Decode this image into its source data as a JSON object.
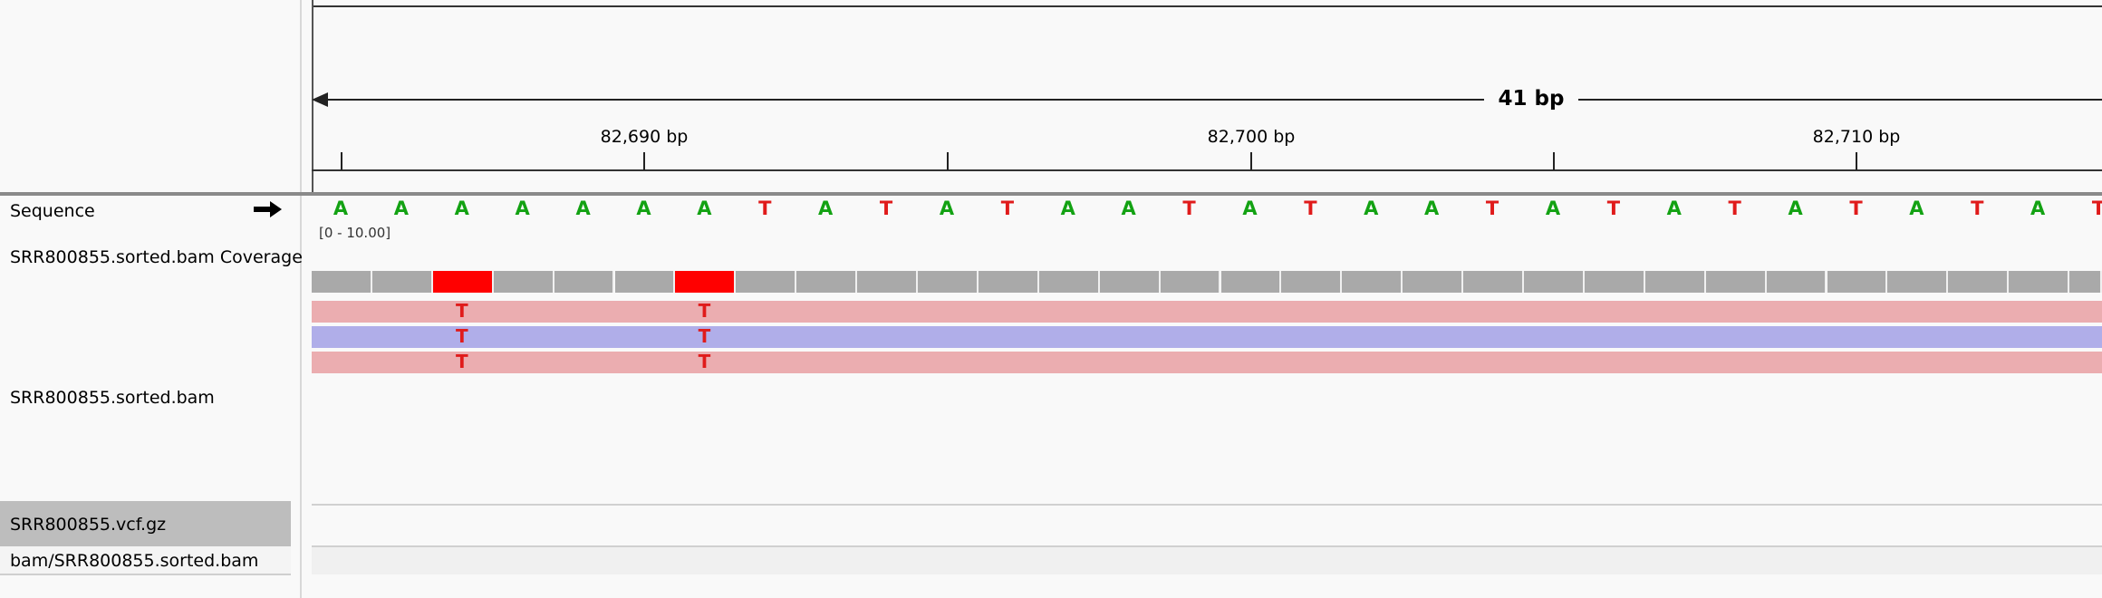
{
  "ruler": {
    "span_label": "41 bp",
    "ticks": [
      {
        "label": "82,690 bp"
      },
      {
        "label": "82,700 bp"
      },
      {
        "label": "82,710 bp"
      }
    ]
  },
  "tracks": {
    "sequence": {
      "label": "Sequence",
      "strand_icon": "right-arrow-icon"
    },
    "coverage": {
      "label": "SRR800855.sorted.bam Coverage",
      "range": "[0 - 10.00]"
    },
    "alignment": {
      "label": "SRR800855.sorted.bam"
    },
    "vcf": {
      "label": "SRR800855.vcf.gz"
    },
    "bam2": {
      "label": "bam/SRR800855.sorted.bam"
    }
  },
  "sequence_bases": [
    "A",
    "A",
    "A",
    "A",
    "A",
    "A",
    "A",
    "T",
    "A",
    "T",
    "A",
    "T",
    "A",
    "A",
    "T",
    "A",
    "T",
    "A",
    "A",
    "T",
    "A",
    "T",
    "A",
    "T",
    "A",
    "T",
    "A",
    "T",
    "A",
    "T"
  ],
  "coverage": {
    "mismatch_positions": [
      2,
      6
    ],
    "mismatch_base": "T"
  },
  "reads": [
    {
      "strand": "forward",
      "color": "#ebadb0",
      "mismatches": [
        "T",
        "T"
      ]
    },
    {
      "strand": "reverse",
      "color": "#b0aee9",
      "mismatches": [
        "T",
        "T"
      ]
    },
    {
      "strand": "forward",
      "color": "#ebadb0",
      "mismatches": [
        "T",
        "T"
      ]
    }
  ],
  "colors": {
    "base_A": "#13a213",
    "base_T": "#e01b1b",
    "coverage": "#a9a9a9",
    "mismatch": "#ff0000"
  }
}
